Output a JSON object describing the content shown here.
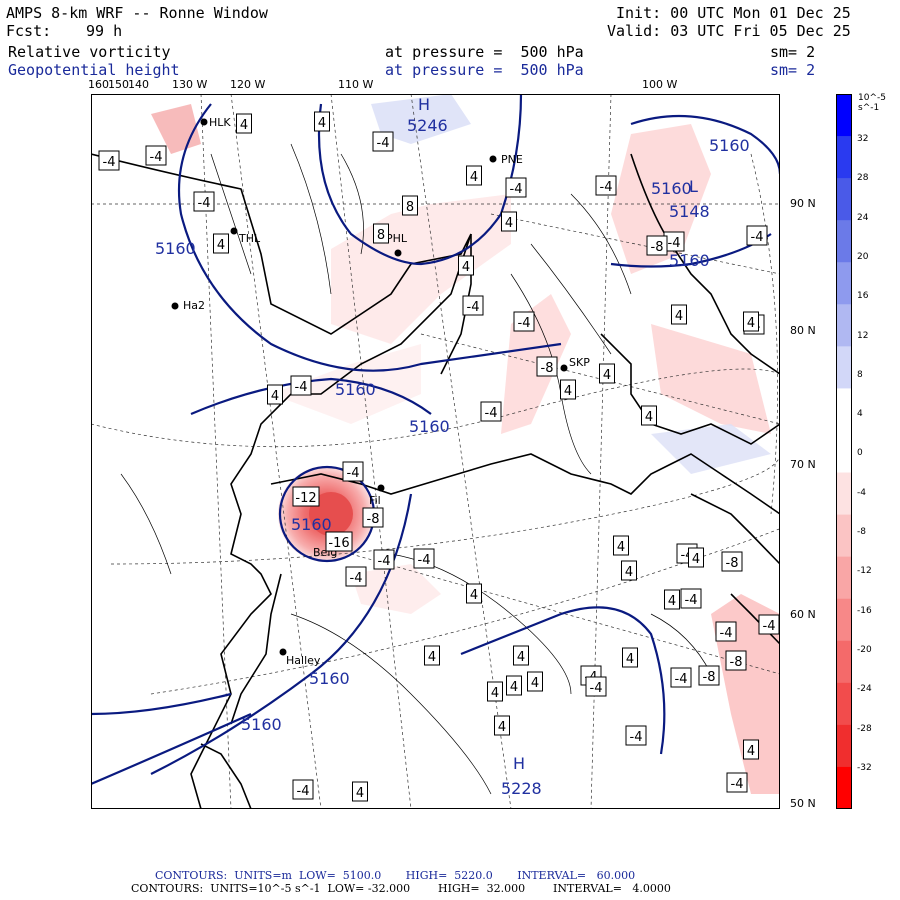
{
  "header": {
    "model": "AMPS 8-km WRF -- Ronne Window",
    "forecast_label": "Fcst:",
    "forecast_value": "99 h",
    "init": "Init: 00 UTC Mon 01 Dec 25",
    "valid": "Valid: 03 UTC Fri 05 Dec 25",
    "field1": {
      "name": "Relative vorticity",
      "level": "at pressure =  500 hPa",
      "smooth": "sm= 2"
    },
    "field2": {
      "name": "Geopotential height",
      "level": "at pressure =  500 hPa",
      "smooth": "sm= 2"
    }
  },
  "map": {
    "longitude_labels": [
      "160",
      "150",
      "140",
      "130 W",
      "120 W",
      "110 W",
      "100 W"
    ],
    "latitude_labels": [
      "90 N",
      "80 N",
      "70 N",
      "60 N",
      "50 N"
    ],
    "stations": [
      "HLK",
      "THL",
      "PNE",
      "PHL",
      "SKP",
      "Halley",
      "Belg",
      "Fil",
      "Ha2"
    ],
    "height_contours": [
      "5246",
      "5160",
      "5160",
      "5160",
      "5160",
      "5160",
      "5160",
      "5160",
      "5160",
      "5228",
      "5148",
      "5160"
    ],
    "high_markers": [
      "H",
      "H"
    ],
    "low_markers": [
      "L"
    ],
    "vorticity_boxes": [
      "-4",
      "4",
      "4",
      "-4",
      "-4",
      "8",
      "8",
      "4",
      "-4",
      "4",
      "-4",
      "4",
      "-4",
      "-4",
      "-4",
      "4",
      "-8",
      "-4",
      "-4",
      "4",
      "-4",
      "4",
      "4",
      "-8",
      "-4",
      "4",
      "-4",
      "-8",
      "-4",
      "4",
      "-4",
      "-4",
      "-4",
      "-4",
      "-8",
      "4",
      "4",
      "-4",
      "-4",
      "-4",
      "4",
      "4",
      "4",
      "4",
      "-4",
      "-8",
      "-4",
      "4",
      "-8",
      "-4",
      "-4",
      "4",
      "4",
      "-4",
      "4",
      "4",
      "4",
      "4",
      "-4",
      "4",
      "4",
      "-12",
      "-16"
    ]
  },
  "colorbar": {
    "unit": "10^-5 s^-1",
    "labels": [
      "32",
      "28",
      "24",
      "20",
      "16",
      "12",
      "8",
      "4",
      "0",
      "-4",
      "-8",
      "-12",
      "-16",
      "-20",
      "-24",
      "-28",
      "-32"
    ],
    "colors": [
      "#0000ff",
      "#2a3af0",
      "#4a5ae8",
      "#6b7ae8",
      "#8e9aee",
      "#b0b8f2",
      "#d2d7f8",
      "#ffffff",
      "#ffffff",
      "#fde2e2",
      "#fbc4c4",
      "#f9a6a6",
      "#f78888",
      "#f46a6a",
      "#f24c4c",
      "#f02e2e",
      "#ff0000"
    ]
  },
  "footer": {
    "line1": "CONTOURS:  UNITS=m  LOW=  5100.0       HIGH=  5220.0       INTERVAL=   60.000",
    "line2": "CONTOURS:  UNITS=10^-5 s^-1  LOW= -32.000        HIGH=  32.000        INTERVAL=   4.0000"
  }
}
